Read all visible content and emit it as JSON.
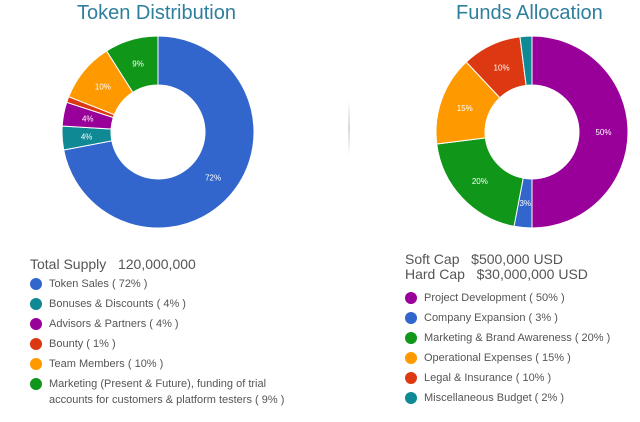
{
  "left": {
    "title": "Token Distribution",
    "summary": {
      "label": "Total Supply",
      "value": "120,000,000"
    },
    "legend": [
      "Token Sales ( 72% )",
      "Bonuses & Discounts ( 4% )",
      "Advisors & Partners ( 4% )",
      "Bounty ( 1% )",
      "Team Members ( 10% )",
      "Marketing (Present & Future), funding of trial accounts for customers & platform testers ( 9% )"
    ]
  },
  "right": {
    "title": "Funds Allocation",
    "summary": [
      {
        "label": "Soft Cap",
        "value": "$500,000 USD"
      },
      {
        "label": "Hard Cap",
        "value": "$30,000,000 USD"
      }
    ],
    "legend": [
      "Project Development ( 50% )",
      "Company Expansion ( 3% )",
      "Marketing & Brand Awareness ( 20% )",
      "Operational Expenses ( 15% )",
      "Legal & Insurance ( 10% )",
      "Miscellaneous Budget ( 2% )"
    ]
  },
  "chart_data": [
    {
      "type": "pie",
      "title": "Token Distribution",
      "categories": [
        "Token Sales",
        "Bonuses & Discounts",
        "Advisors & Partners",
        "Bounty",
        "Team Members",
        "Marketing (Present & Future), funding of trial accounts for customers & platform testers"
      ],
      "values": [
        72,
        4,
        4,
        1,
        10,
        9
      ],
      "data_labels": [
        "72%",
        "4%",
        "4%",
        "",
        "10%",
        "9%"
      ],
      "colors": [
        "#3366cc",
        "#0f8a94",
        "#990099",
        "#dc3912",
        "#ff9900",
        "#109618"
      ],
      "start_category": "Token Sales",
      "direction": "clockwise",
      "donut": true
    },
    {
      "type": "pie",
      "title": "Funds Allocation",
      "categories": [
        "Project Development",
        "Company Expansion",
        "Marketing & Brand Awareness",
        "Operational Expenses",
        "Legal & Insurance",
        "Miscellaneous Budget"
      ],
      "values": [
        50,
        3,
        20,
        15,
        10,
        2
      ],
      "data_labels": [
        "50%",
        "3%",
        "20%",
        "15%",
        "10%",
        ""
      ],
      "colors": [
        "#990099",
        "#3366cc",
        "#109618",
        "#ff9900",
        "#dc3912",
        "#0f8a94"
      ],
      "start_category": "Project Development",
      "direction": "clockwise",
      "donut": true
    }
  ]
}
